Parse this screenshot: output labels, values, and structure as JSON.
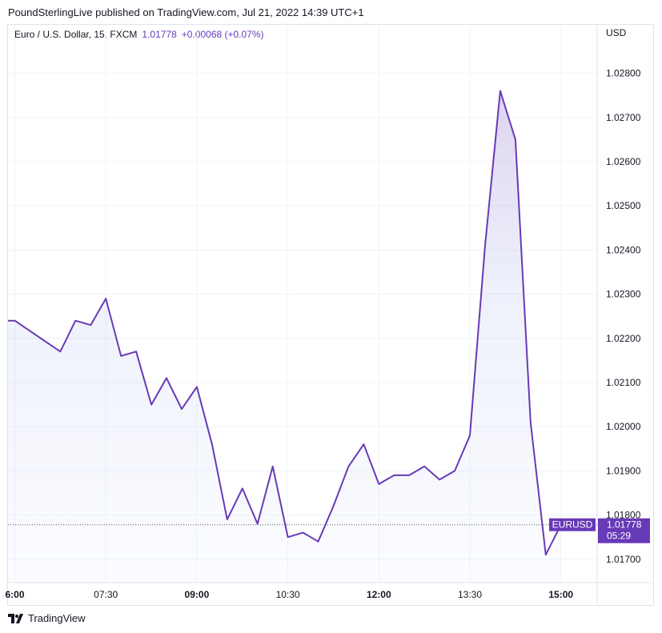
{
  "header": {
    "published": "PoundSterlingLive published on TradingView.com, Jul 21, 2022 14:39 UTC+1"
  },
  "legend": {
    "symbol": "Euro / U.S. Dollar, 15, FXCM",
    "last": "1.01778",
    "change": "+0.00068 (+0.07%)"
  },
  "footer": {
    "brand": "TradingView"
  },
  "colors": {
    "line": "#673ab7",
    "grid": "#f0f3fa",
    "text": "#131722"
  },
  "chart_data": {
    "type": "area",
    "currency": "USD",
    "ylim": [
      1.0163,
      1.0292
    ],
    "yticks": [
      1.017,
      1.018,
      1.019,
      1.02,
      1.021,
      1.022,
      1.023,
      1.024,
      1.025,
      1.026,
      1.027,
      1.028
    ],
    "ytick_labels": [
      "1.01700",
      "1.01800",
      "1.01900",
      "1.02000",
      "1.02100",
      "1.02200",
      "1.02300",
      "1.02400",
      "1.02500",
      "1.02600",
      "1.02700",
      "1.02800"
    ],
    "xticks": [
      {
        "t": 360,
        "label": "6:00",
        "bold": true
      },
      {
        "t": 450,
        "label": "07:30",
        "bold": false
      },
      {
        "t": 540,
        "label": "09:00",
        "bold": true
      },
      {
        "t": 630,
        "label": "10:30",
        "bold": false
      },
      {
        "t": 720,
        "label": "12:00",
        "bold": true
      },
      {
        "t": 810,
        "label": "13:30",
        "bold": false
      },
      {
        "t": 900,
        "label": "15:00",
        "bold": true
      }
    ],
    "t_range": [
      358,
      938
    ],
    "series": [
      {
        "t": [
          360,
          405,
          420,
          435,
          450,
          465,
          480,
          495,
          510,
          525,
          540,
          555,
          570,
          585,
          600,
          615,
          630,
          645,
          660,
          675,
          690,
          705,
          720,
          735,
          750,
          765,
          780,
          795,
          810,
          825,
          840,
          855,
          870
        ],
        "close": [
          1.0224,
          1.0217,
          1.0224,
          1.0223,
          1.0229,
          1.0216,
          1.0217,
          1.0205,
          1.0211,
          1.0204,
          1.0209,
          1.0196,
          1.0179,
          1.0186,
          1.0178,
          1.0191,
          1.0175,
          1.0176,
          1.0174,
          1.0182,
          1.0191,
          1.0196,
          1.0187,
          1.0189,
          1.0189,
          1.0191,
          1.0188,
          1.019,
          1.0198,
          1.0241,
          1.0276,
          1.0265,
          1.0201
        ],
        "extra": [
          {
            "t": 885,
            "v": 1.0171
          },
          {
            "t": 900,
            "v": 1.01778
          }
        ]
      }
    ],
    "first_point": {
      "t": 358,
      "v": 1.0224
    },
    "last_label": "EURUSD",
    "last_value": "1.01778",
    "countdown": "05:29"
  }
}
